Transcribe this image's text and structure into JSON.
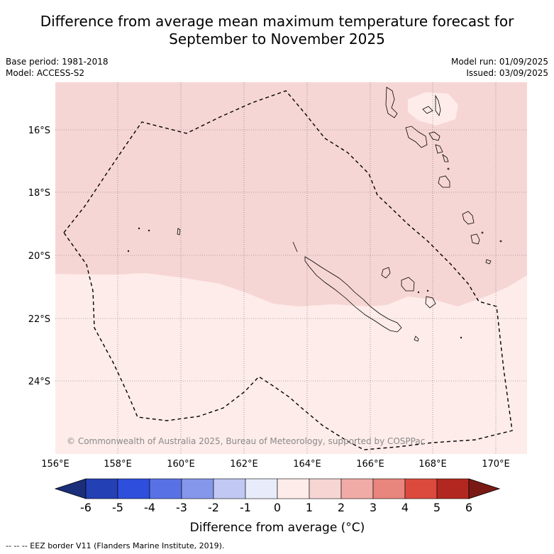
{
  "title_line1": "Difference from average mean maximum temperature forecast for",
  "title_line2": "September to November 2025",
  "base_period": "Base period: 1981-2018",
  "model": "Model: ACCESS-S2",
  "model_run": "Model run: 01/09/2025",
  "issued": "Issued: 03/09/2025",
  "copyright": "© Commonwealth of Australia 2025, Bureau of Meteorology, supported by COSPPac",
  "footer": "--  --  -- EEZ border V11 (Flanders Marine Institute, 2019).",
  "lon_labels": [
    "156°E",
    "158°E",
    "160°E",
    "162°E",
    "164°E",
    "166°E",
    "168°E",
    "170°E"
  ],
  "lat_labels": [
    "16°S",
    "18°S",
    "20°S",
    "22°S",
    "24°S"
  ],
  "colorbar": {
    "title": "Difference from average (°C)",
    "tick_labels": [
      "-6",
      "-5",
      "-4",
      "-3",
      "-2",
      "-1",
      "0",
      "1",
      "2",
      "3",
      "4",
      "5",
      "6"
    ],
    "colors": [
      "#1a2e7a",
      "#2440b5",
      "#2e4fdc",
      "#5872e6",
      "#8597ea",
      "#c0c8f3",
      "#e8ecfa",
      "#fdecea",
      "#f6d5d3",
      "#f0aba6",
      "#e8857c",
      "#dc4a3e",
      "#b2271f",
      "#7a1a14"
    ]
  },
  "map_colors": {
    "anomaly_1_to_2": "#f6d6d4",
    "anomaly_0_to_1": "#fdecea",
    "land_outline": "#000000",
    "eez_border": "#000000"
  },
  "icons": [
    "coastline-outline",
    "eez-dashed-line"
  ]
}
